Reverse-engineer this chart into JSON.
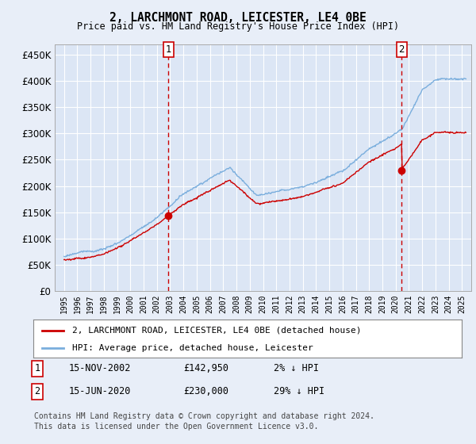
{
  "title": "2, LARCHMONT ROAD, LEICESTER, LE4 0BE",
  "subtitle": "Price paid vs. HM Land Registry's House Price Index (HPI)",
  "background_color": "#e8eef8",
  "plot_bg_color": "#dce6f5",
  "grid_color": "#ffffff",
  "sale1_yr": 2002.875,
  "sale1_price": 142950,
  "sale2_yr": 2020.458,
  "sale2_price": 230000,
  "legend_line1": "2, LARCHMONT ROAD, LEICESTER, LE4 0BE (detached house)",
  "legend_line2": "HPI: Average price, detached house, Leicester",
  "footnote1": "Contains HM Land Registry data © Crown copyright and database right 2024.",
  "footnote2": "This data is licensed under the Open Government Licence v3.0.",
  "ylim": [
    0,
    470000
  ],
  "yticks": [
    0,
    50000,
    100000,
    150000,
    200000,
    250000,
    300000,
    350000,
    400000,
    450000
  ],
  "hpi_color": "#7aaedd",
  "price_color": "#cc0000",
  "dashed_color": "#cc0000",
  "marker_color": "#cc0000",
  "xstart": 1995,
  "xend": 2025
}
